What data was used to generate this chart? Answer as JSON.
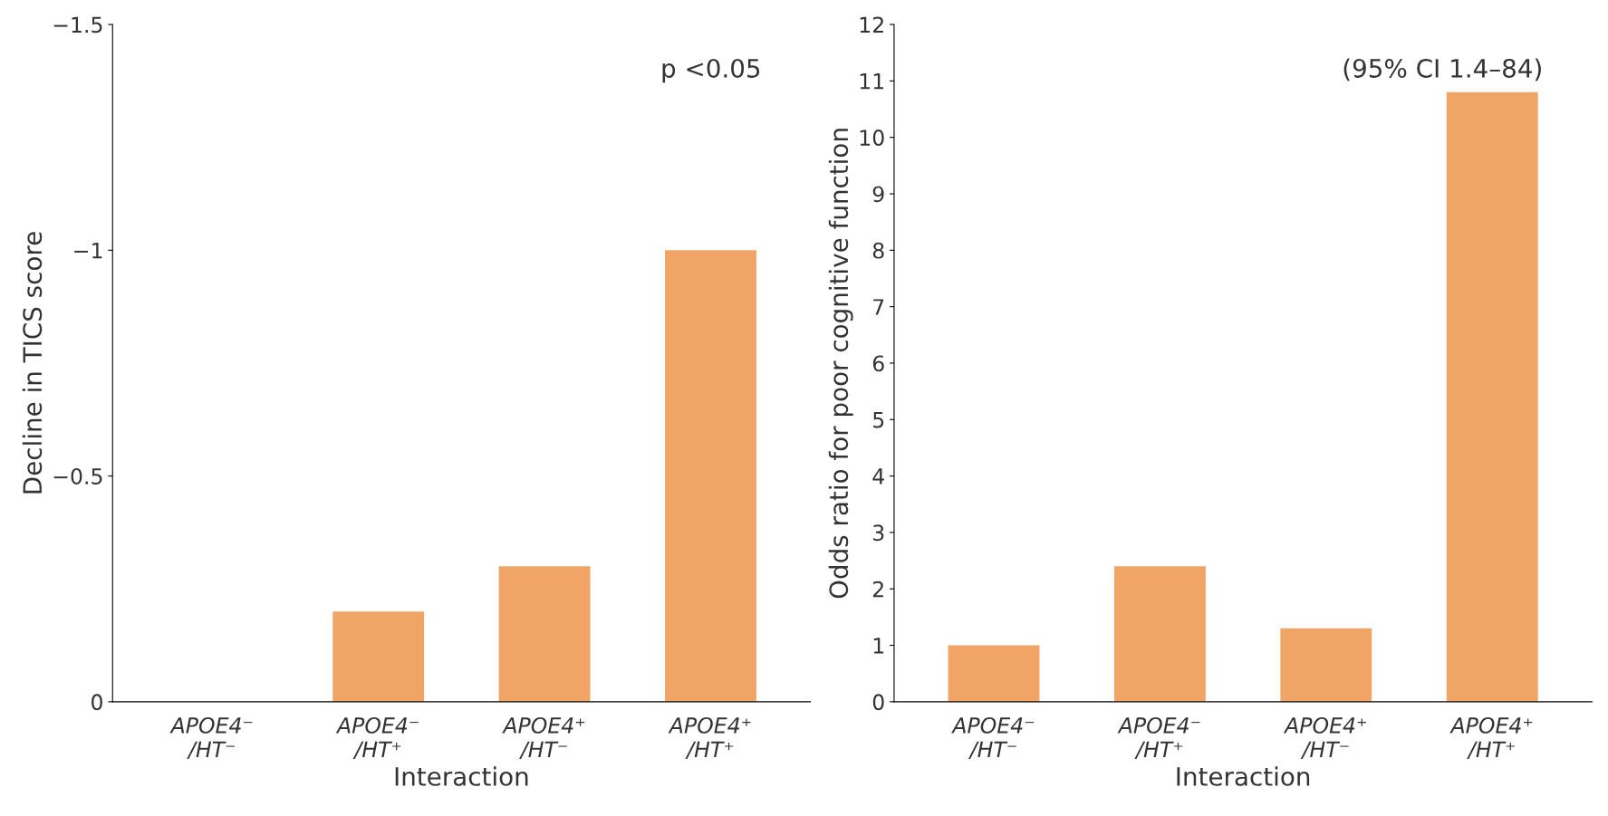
{
  "chart_data": [
    {
      "type": "bar",
      "categories": [
        "APOE4⁻\n/HT⁻",
        "APOE4⁻\n/HT⁺",
        "APOE4⁺\n/HT⁻",
        "APOE4⁺\n/HT⁺"
      ],
      "values": [
        0,
        -0.2,
        -0.3,
        -1.0
      ],
      "color": "#f0a465",
      "xlabel": "Interaction",
      "ylabel": "Decline in TICS score",
      "ylim": [
        0,
        -1.5
      ],
      "yticks": [
        0,
        {
          "value": -0.5,
          "label": "−0.5"
        },
        {
          "value": -1,
          "label": "−1"
        },
        {
          "value": -1.5,
          "label": "−1.5"
        }
      ],
      "annotations": [
        "p <0.05"
      ],
      "grid": false
    },
    {
      "type": "bar",
      "categories": [
        "APOE4⁻\n/HT⁻",
        "APOE4⁻\n/HT⁺",
        "APOE4⁺\n/HT⁻",
        "APOE4⁺\n/HT⁺"
      ],
      "values": [
        1.0,
        2.4,
        1.3,
        10.8
      ],
      "color": "#f0a465",
      "xlabel": "Interaction",
      "ylabel": "Odds ratio for poor cognitive function",
      "ylim": [
        0,
        12
      ],
      "yticks": [
        0,
        1,
        2,
        3,
        4,
        5,
        6,
        7,
        8,
        9,
        10,
        11,
        12
      ],
      "annotations": [
        "(95% CI 1.4–84)"
      ],
      "grid": false
    }
  ]
}
